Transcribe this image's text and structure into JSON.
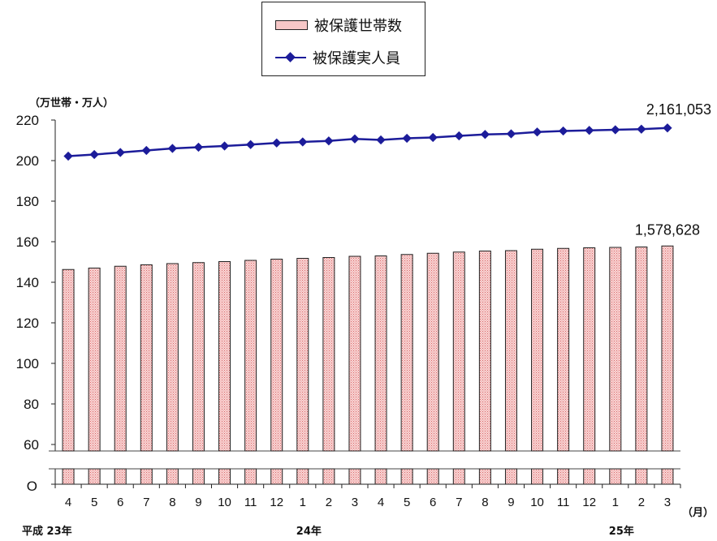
{
  "legend": {
    "bar_label": "被保護世帯数",
    "line_label": "被保護実人員"
  },
  "unit_label": "（万世帯・万人）",
  "x_unit": "（月）",
  "zero_label": "O",
  "year_labels": [
    {
      "text": "平成 23年",
      "index": 0
    },
    {
      "text": "24年",
      "index": 9
    },
    {
      "text": "25年",
      "index": 21
    }
  ],
  "chart_data": {
    "type": "bar",
    "categories": [
      "4",
      "5",
      "6",
      "7",
      "8",
      "9",
      "10",
      "11",
      "12",
      "1",
      "2",
      "3",
      "4",
      "5",
      "6",
      "7",
      "8",
      "9",
      "10",
      "11",
      "12",
      "1",
      "2",
      "3"
    ],
    "y_ticks": [
      60,
      80,
      100,
      120,
      140,
      160,
      180,
      200,
      220
    ],
    "ylim": [
      0,
      220
    ],
    "axis_break": true,
    "series": [
      {
        "name": "被保護世帯数",
        "type": "bar",
        "values": [
          146.3,
          147.0,
          147.9,
          148.6,
          149.2,
          149.7,
          150.2,
          150.8,
          151.4,
          151.8,
          152.2,
          152.8,
          153.0,
          153.7,
          154.3,
          154.9,
          155.4,
          155.6,
          156.3,
          156.7,
          157.0,
          157.2,
          157.4,
          157.9
        ],
        "color": "#f6c7c7",
        "end_label": "1,578,628"
      },
      {
        "name": "被保護実人員",
        "type": "line",
        "values": [
          202.2,
          203.0,
          204.0,
          205.0,
          206.0,
          206.6,
          207.2,
          207.9,
          208.7,
          209.2,
          209.7,
          210.7,
          210.2,
          211.0,
          211.4,
          212.2,
          212.9,
          213.2,
          214.1,
          214.6,
          214.9,
          215.2,
          215.5,
          216.1
        ],
        "color": "#1c1c9a",
        "end_label": "2,161,053"
      }
    ]
  }
}
